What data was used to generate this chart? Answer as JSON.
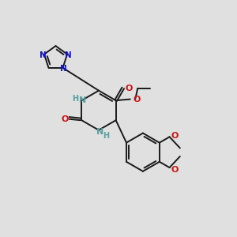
{
  "background_color": "#e0e0e0",
  "bond_color": "#1a1a1a",
  "N_color": "#1414cc",
  "O_color": "#cc1414",
  "NH_color": "#5a9ea0",
  "figsize": [
    3.0,
    3.0
  ],
  "dpi": 100,
  "xlim": [
    0,
    10
  ],
  "ylim": [
    0,
    10
  ]
}
